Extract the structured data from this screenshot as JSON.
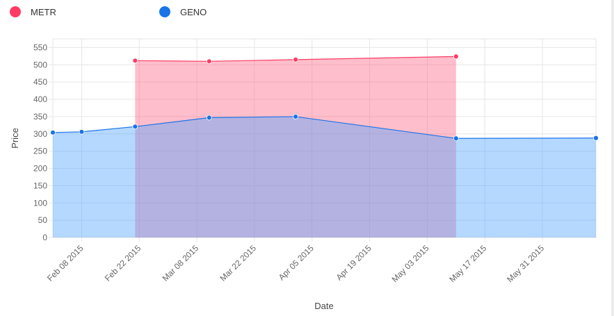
{
  "chart_data": {
    "type": "area",
    "xlabel": "Date",
    "ylabel": "Price",
    "x_range": [
      "2015-02-01",
      "2015-06-13"
    ],
    "ylim": [
      0,
      575
    ],
    "y_ticks": [
      0,
      50,
      100,
      150,
      200,
      250,
      300,
      350,
      400,
      450,
      500,
      550
    ],
    "x_ticks": [
      {
        "date": "2015-02-08",
        "label": "Feb 08 2015"
      },
      {
        "date": "2015-02-22",
        "label": "Feb 22 2015"
      },
      {
        "date": "2015-03-08",
        "label": "Mar 08 2015"
      },
      {
        "date": "2015-03-22",
        "label": "Mar 22 2015"
      },
      {
        "date": "2015-04-05",
        "label": "Apr 05 2015"
      },
      {
        "date": "2015-04-19",
        "label": "Apr 19 2015"
      },
      {
        "date": "2015-05-03",
        "label": "May 03 2015"
      },
      {
        "date": "2015-05-17",
        "label": "May 17 2015"
      },
      {
        "date": "2015-05-31",
        "label": "May 31 2015"
      }
    ],
    "grid": true,
    "legend_position": "top-left",
    "series": [
      {
        "name": "METR",
        "color": "#ff3b64",
        "fill": "#ff6384",
        "points": [
          {
            "date": "2015-02-21",
            "value": 512
          },
          {
            "date": "2015-03-11",
            "value": 510
          },
          {
            "date": "2015-04-01",
            "value": 515
          },
          {
            "date": "2015-05-10",
            "value": 524
          }
        ]
      },
      {
        "name": "GENO",
        "color": "#1a73e8",
        "fill": "#4da3ff",
        "points": [
          {
            "date": "2015-02-01",
            "value": 304
          },
          {
            "date": "2015-02-08",
            "value": 306
          },
          {
            "date": "2015-02-21",
            "value": 321
          },
          {
            "date": "2015-03-11",
            "value": 347
          },
          {
            "date": "2015-04-01",
            "value": 350
          },
          {
            "date": "2015-05-10",
            "value": 287
          },
          {
            "date": "2015-06-13",
            "value": 288
          }
        ]
      }
    ]
  }
}
